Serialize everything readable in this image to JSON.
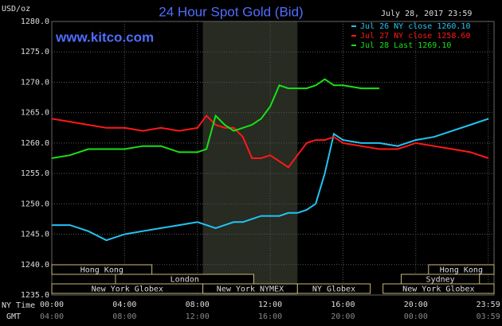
{
  "chart_data": {
    "type": "line",
    "title": "24 Hour Spot Gold (Bid)",
    "date": "July 28, 2017 23:59",
    "site": "www.kitco.com",
    "unit": "USD/oz",
    "x_axis_labels": [
      "NY Time",
      "GMT"
    ],
    "x": [
      0,
      1,
      2,
      3,
      4,
      5,
      6,
      7,
      8,
      8.5,
      9,
      9.5,
      10,
      10.5,
      11,
      11.5,
      12,
      12.5,
      13,
      13.5,
      14,
      14.5,
      15,
      15.5,
      16,
      17,
      18,
      19,
      20,
      21,
      22,
      23,
      24
    ],
    "series": [
      {
        "name": "Jul 26 NY close 1260.10",
        "color": "#22c4f4",
        "values": [
          1246.5,
          1246.5,
          1245.5,
          1244,
          1245,
          1245.5,
          1246,
          1246.5,
          1247,
          1246.5,
          1246,
          1246.5,
          1247,
          1247,
          1247.5,
          1248,
          1248,
          1248,
          1248.5,
          1248.5,
          1249,
          1250,
          1255,
          1261.5,
          1260.5,
          1260,
          1260,
          1259.5,
          1260.5,
          1261,
          1262,
          1263,
          1264
        ]
      },
      {
        "name": "Jul 27 NY close 1258.60",
        "color": "#ff1818",
        "values": [
          1264,
          1263.5,
          1263,
          1262.5,
          1262.5,
          1262,
          1262.5,
          1262,
          1262.5,
          1264.5,
          1263,
          1262.5,
          1262.5,
          1261,
          1257.5,
          1257.5,
          1258,
          1257,
          1256,
          1258,
          1260,
          1260.5,
          1260.5,
          1261,
          1260,
          1259.5,
          1259,
          1259,
          1260,
          1259.5,
          1259,
          1258.5,
          1257.5
        ]
      },
      {
        "name": "Jul 28 Last 1269.10",
        "color": "#18e018",
        "values": [
          1257.5,
          1258,
          1259,
          1259,
          1259,
          1259.5,
          1259.5,
          1258.5,
          1258.5,
          1259,
          1264.5,
          1263,
          1262,
          1262.5,
          1263,
          1264,
          1266,
          1269.5,
          1269,
          1269,
          1269,
          1269.5,
          1270.5,
          1269.5,
          1269.5,
          1269,
          1269,
          null,
          null,
          null,
          null,
          null,
          null
        ]
      }
    ],
    "xlim": [
      0,
      24.3
    ],
    "xticks": [
      {
        "value": 0,
        "label": "00:00"
      },
      {
        "value": 4,
        "label": "04:00"
      },
      {
        "value": 8,
        "label": "08:00"
      },
      {
        "value": 12,
        "label": "12:00"
      },
      {
        "value": 16,
        "label": "16:00"
      },
      {
        "value": 20,
        "label": "20:00"
      },
      {
        "value": 23.98,
        "label": "23:59"
      }
    ],
    "gmt_labels": [
      "04:00",
      "08:00",
      "12:00",
      "16:00",
      "20:00",
      "00:00",
      "03:59"
    ],
    "ylim": [
      1235,
      1280
    ],
    "yticks": [
      {
        "value": 1235,
        "label": "1235.0"
      },
      {
        "value": 1240,
        "label": "1240.0"
      },
      {
        "value": 1245,
        "label": "1245.0"
      },
      {
        "value": 1250,
        "label": "1250.0"
      },
      {
        "value": 1255,
        "label": "1255.0"
      },
      {
        "value": 1260,
        "label": "1260.0"
      },
      {
        "value": 1265,
        "label": "1265.0"
      },
      {
        "value": 1270,
        "label": "1270.0"
      },
      {
        "value": 1275,
        "label": "1275.0"
      },
      {
        "value": 1280,
        "label": "1280.0"
      }
    ],
    "grid": true,
    "highlight": [
      8.3,
      13.5
    ],
    "session_rows": [
      [
        {
          "name": "Hong Kong",
          "start": 0,
          "end": 5.5
        },
        {
          "name": "Hong Kong",
          "start": 20.7,
          "end": 24.3
        }
      ],
      [
        {
          "name": "London",
          "start": 3.5,
          "end": 11.1
        },
        {
          "name": "Sydney",
          "start": 19.2,
          "end": 23.5
        }
      ],
      [
        {
          "name": "New York Globex",
          "start": 0,
          "end": 8.3
        },
        {
          "name": "New York NYMEX",
          "start": 8.3,
          "end": 13.5
        },
        {
          "name": "NY Globex",
          "start": 13.5,
          "end": 17.5
        },
        {
          "name": "New York Globex",
          "start": 18.2,
          "end": 24.3
        }
      ]
    ]
  }
}
